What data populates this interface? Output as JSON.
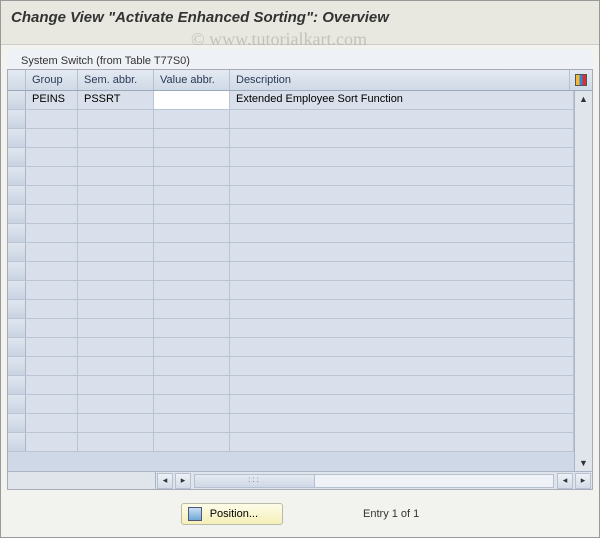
{
  "title": "Change View \"Activate Enhanced Sorting\": Overview",
  "watermark": "© www.tutorialkart.com",
  "section_label": "System Switch (from Table T77S0)",
  "columns": {
    "group": "Group",
    "sem": "Sem. abbr.",
    "val": "Value abbr.",
    "desc": "Description"
  },
  "rows": [
    {
      "group": "PEINS",
      "sem": "PSSRT",
      "val": "",
      "desc": "Extended Employee Sort Function"
    }
  ],
  "empty_row_count": 18,
  "footer": {
    "position_label": "Position...",
    "entry_text": "Entry 1 of 1"
  },
  "colors": {
    "header_bg": "#e8e8e0",
    "grid_header_from": "#e4eaf2",
    "grid_header_to": "#d0d9e6",
    "grid_body_bg": "#cfd8e6",
    "cell_bg": "#d9e0eb",
    "edit_bg": "#ffffff",
    "button_bg_from": "#fdfce8",
    "button_bg_to": "#f5f0b8"
  }
}
